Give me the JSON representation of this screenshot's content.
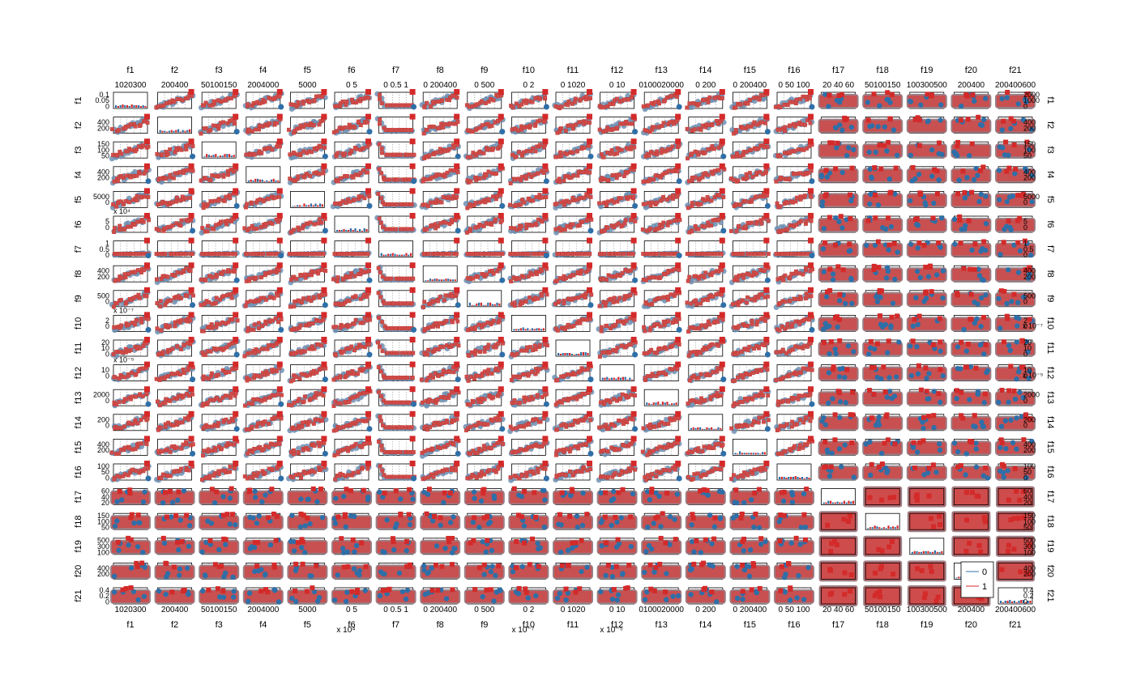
{
  "chart_data": {
    "type": "scatter",
    "variables": [
      "f1",
      "f2",
      "f3",
      "f4",
      "f5",
      "f6",
      "f7",
      "f8",
      "f9",
      "f10",
      "f11",
      "f12",
      "f13",
      "f14",
      "f15",
      "f16",
      "f17",
      "f18",
      "f19",
      "f20",
      "f21"
    ],
    "groups": [
      {
        "name": "0",
        "color": "#2f6fa8",
        "marker": "circle"
      },
      {
        "name": "1",
        "color": "#d42a2a",
        "marker": "square"
      }
    ],
    "top_tick_labels": [
      "1020300",
      "200400",
      "50100150",
      "2004000",
      "5000",
      "0    5",
      "0 0.5  1",
      "0 200400",
      "0    500",
      "0    2",
      "0 1020",
      "0    10",
      "0100020000",
      "0  200",
      "0 200400",
      "0  50 100",
      "20 40 60",
      "50100150",
      "100300500",
      "200400",
      "200400600"
    ],
    "bottom_tick_labels": [
      "1020300",
      "200400",
      "50100150",
      "2004000",
      "5000",
      "0    5",
      "0 0.5  1",
      "0 200400",
      "0    500",
      "0    2",
      "0 1020",
      "0    10",
      "0100020000",
      "0  200",
      "0 200400",
      "0  50 100",
      "20 40 60",
      "50100150",
      "100300500",
      "200400",
      "200400600"
    ],
    "left_tick_labels": [
      "0.1\n0.05\n0",
      "400\n200",
      "150\n100\n50",
      "400\n200",
      "5000\n0",
      "5\n0",
      "1\n0.5\n0",
      "400\n200",
      "500\n0",
      "2\n0",
      "20\n10\n0",
      "10\n0",
      "2000\n0",
      "200\n0",
      "400\n200",
      "100\n50\n0",
      "60\n40\n20",
      "150\n100\n50",
      "500\n300\n100",
      "400\n200",
      "0.4\n0.2\n0"
    ],
    "right_tick_labels": [
      "2000\n1000\n0",
      "400\n200",
      "150\n100\n50",
      "400\n200",
      "5000\n0",
      "5\n0",
      "1\n0.5\n0",
      "400\n200",
      "500\n0",
      "2\n0",
      "20\n10\n0",
      "10\n0",
      "2000\n0",
      "200\n0",
      "400\n200",
      "100\n50\n0",
      "60\n40\n20",
      "150\n100\n50",
      "500\n300\n100",
      "400\n200",
      "0.4\n0.2\n0"
    ],
    "exponent_notes": {
      "left": [
        {
          "row": 5,
          "text": "x 10⁴"
        },
        {
          "row": 9,
          "text": "x 10⁻⁷"
        },
        {
          "row": 11,
          "text": "x 10⁻⁵"
        }
      ],
      "right": [
        {
          "row": 9,
          "text": "x 10⁻⁷"
        },
        {
          "row": 11,
          "text": "x 10⁻⁵"
        }
      ],
      "bottom": [
        {
          "col": 5,
          "text": "x 10⁴"
        },
        {
          "col": 9,
          "text": "x 10⁻⁷"
        },
        {
          "col": 11,
          "text": "x 10⁻⁵"
        }
      ]
    },
    "diagonal": "histogram",
    "grid": true,
    "legend": {
      "entries": [
        "0",
        "1"
      ],
      "position": "bottom-right"
    }
  }
}
